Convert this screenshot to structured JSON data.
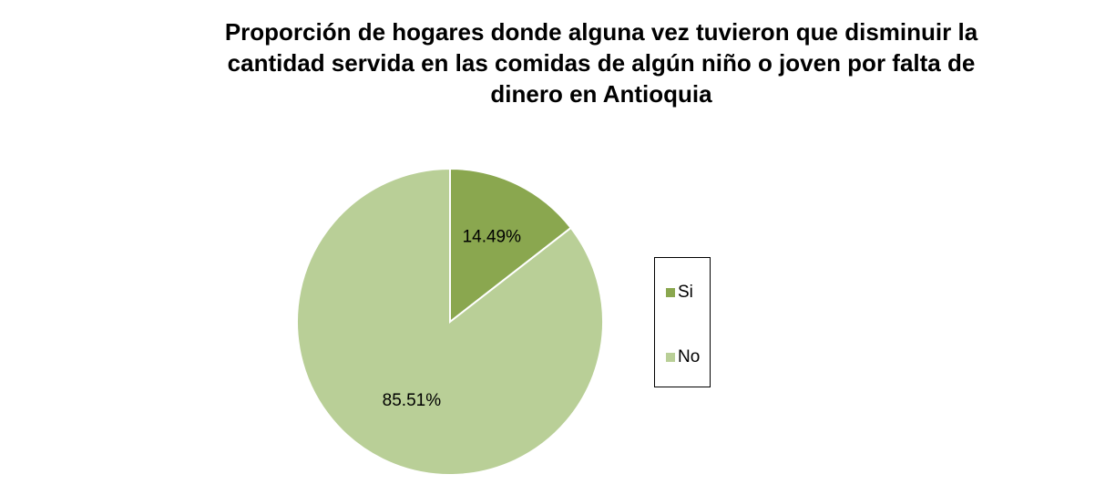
{
  "chart_data": {
    "type": "pie",
    "title_lines": [
      "Proporción de hogares donde alguna vez tuvieron que disminuir la",
      "cantidad servida en las comidas de algún niño o joven por falta de",
      "dinero en Antioquia"
    ],
    "categories": [
      "Si",
      "No"
    ],
    "values": [
      14.49,
      85.51
    ],
    "data_labels": [
      "14.49%",
      "85.51%"
    ],
    "colors": [
      "#8aa74f",
      "#b9cf97"
    ],
    "start_angle": "12 o'clock",
    "direction": "clockwise",
    "legend": {
      "placement": "right",
      "entries": [
        "Si",
        "No"
      ]
    }
  }
}
